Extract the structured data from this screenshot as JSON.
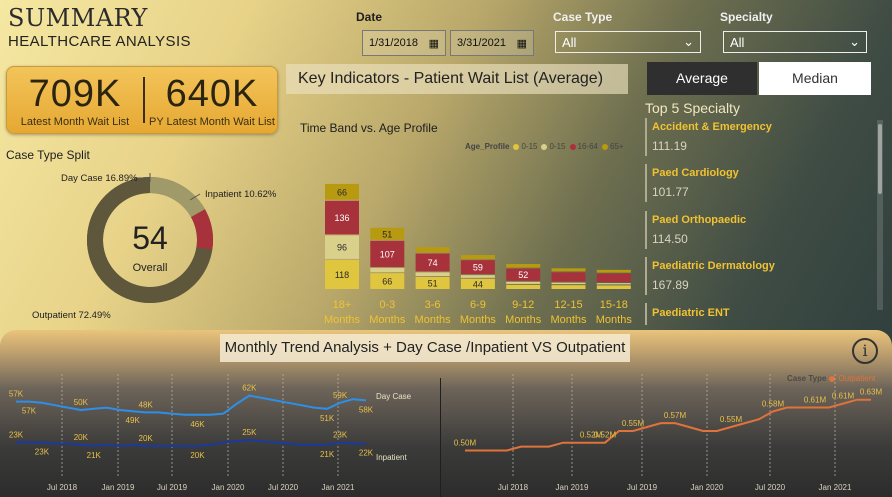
{
  "header": {
    "title": "SUMMARY",
    "subtitle": "HEALTHCARE ANALYSIS"
  },
  "filters": {
    "date_label": "Date",
    "date_start": "1/31/2018",
    "date_end": "3/31/2021",
    "case_type_label": "Case Type",
    "case_type_value": "All",
    "specialty_label": "Specialty",
    "specialty_value": "All"
  },
  "kpi": {
    "latest_value": "709K",
    "latest_label": "Latest Month Wait List",
    "py_value": "640K",
    "py_label": "PY Latest Month Wait List"
  },
  "key_indicators": {
    "title": "Key Indicators - Patient Wait List (Average)",
    "btn_average": "Average",
    "btn_median": "Median"
  },
  "case_type_split": {
    "title": "Case Type Split",
    "center_value": "54",
    "center_label": "Overall",
    "slices": [
      {
        "name": "Day Case",
        "percent": 16.89,
        "label": "Day Case 16.89%",
        "color": "#a09a6a"
      },
      {
        "name": "Inpatient",
        "percent": 10.62,
        "label": "Inpatient 10.62%",
        "color": "#a8323c"
      },
      {
        "name": "Outpatient",
        "percent": 72.49,
        "label": "Outpatient 72.49%",
        "color": "#5e573c"
      }
    ]
  },
  "time_band": {
    "title": "Time Band vs. Age Profile",
    "legend_title": "Age_Profile",
    "legend": [
      {
        "name": "0-15",
        "color": "#e0c53e"
      },
      {
        "name": "0-15",
        "color": "#d9d08c"
      },
      {
        "name": "16-64",
        "color": "#a8323c"
      },
      {
        "name": "65+",
        "color": "#b89a10"
      }
    ],
    "categories": [
      [
        "18+",
        "Months"
      ],
      [
        "0-3",
        "Months"
      ],
      [
        "3-6",
        "Months"
      ],
      [
        "6-9",
        "Months"
      ],
      [
        "9-12",
        "Months"
      ],
      [
        "12-15",
        "Months"
      ],
      [
        "15-18",
        "Months"
      ]
    ]
  },
  "top_specialty": {
    "title": "Top 5 Specialty",
    "items": [
      {
        "name": "Accident & Emergency",
        "value": "111.19"
      },
      {
        "name": "Paed Cardiology",
        "value": "101.77"
      },
      {
        "name": "Paed Orthopaedic",
        "value": "114.50"
      },
      {
        "name": "Paediatric Dermatology",
        "value": "167.89"
      },
      {
        "name": "Paediatric ENT",
        "value": ""
      }
    ]
  },
  "trend": {
    "title": "Monthly Trend Analysis + Day Case /Inpatient VS Outpatient",
    "left_axis": [
      "Jul 2018",
      "Jan 2019",
      "Jul 2019",
      "Jan 2020",
      "Jul 2020",
      "Jan 2021"
    ],
    "right_axis": [
      "Jul 2018",
      "Jan 2019",
      "Jul 2019",
      "Jan 2020",
      "Jul 2020",
      "Jan 2021"
    ],
    "right_legend_title": "Case Type",
    "right_legend_item": "Outpatient"
  },
  "chart_data": [
    {
      "type": "pie",
      "title": "Case Type Split",
      "categories": [
        "Day Case",
        "Inpatient",
        "Outpatient"
      ],
      "values": [
        16.89,
        10.62,
        72.49
      ]
    },
    {
      "type": "bar",
      "stacked": true,
      "title": "Time Band vs. Age Profile",
      "categories": [
        "18+ Months",
        "0-3 Months",
        "3-6 Months",
        "6-9 Months",
        "9-12 Months",
        "12-15 Months",
        "15-18 Months"
      ],
      "series": [
        {
          "name": "0-15",
          "color": "#e0c53e",
          "values": [
            118,
            66,
            51,
            44,
            20,
            19,
            18
          ]
        },
        {
          "name": "0-15",
          "color": "#d9d08c",
          "values": [
            96,
            20,
            18,
            14,
            12,
            10,
            9
          ]
        },
        {
          "name": "16-64",
          "color": "#a8323c",
          "values": [
            136,
            107,
            74,
            59,
            52,
            40,
            37
          ]
        },
        {
          "name": "65+",
          "color": "#b89a10",
          "values": [
            66,
            51,
            25,
            20,
            18,
            16,
            15
          ]
        }
      ],
      "data_labels": [
        [
          "118",
          "96",
          "136",
          "66"
        ],
        [
          "66",
          "",
          "107",
          "51"
        ],
        [
          "51",
          "",
          "74",
          ""
        ],
        [
          "44",
          "",
          "59",
          ""
        ],
        [
          "",
          "",
          "52",
          ""
        ],
        [
          "",
          "",
          "",
          ""
        ],
        [
          "",
          "",
          "",
          ""
        ]
      ],
      "ylim": [
        0,
        450
      ]
    },
    {
      "type": "line",
      "title": "Day Case / Inpatient",
      "ylim": [
        0,
        75
      ],
      "series": [
        {
          "name": "Day Case",
          "color": "#2e8fe8",
          "points": [
            [
              0,
              57
            ],
            [
              1,
              57
            ],
            [
              2,
              56
            ],
            [
              3,
              54
            ],
            [
              4,
              52
            ],
            [
              5,
              50
            ],
            [
              6,
              51
            ],
            [
              7,
              52
            ],
            [
              8,
              50
            ],
            [
              9,
              49
            ],
            [
              10,
              48
            ],
            [
              11,
              48
            ],
            [
              12,
              47
            ],
            [
              13,
              46
            ],
            [
              14,
              46
            ],
            [
              15,
              46
            ],
            [
              16,
              47
            ],
            [
              17,
              55
            ],
            [
              18,
              62
            ],
            [
              19,
              60
            ],
            [
              20,
              58
            ],
            [
              21,
              56
            ],
            [
              22,
              54
            ],
            [
              23,
              52
            ],
            [
              24,
              51
            ],
            [
              25,
              56
            ],
            [
              26,
              59
            ],
            [
              27,
              58
            ]
          ],
          "labels": [
            [
              0,
              "57K"
            ],
            [
              1,
              "57K"
            ],
            [
              5,
              "50K"
            ],
            [
              9,
              "49K"
            ],
            [
              10,
              "48K"
            ],
            [
              14,
              "46K"
            ],
            [
              18,
              "62K"
            ],
            [
              24,
              "51K"
            ],
            [
              25,
              "59K"
            ],
            [
              27,
              "58K"
            ]
          ]
        },
        {
          "name": "Inpatient",
          "color": "#1a3aa0",
          "points": [
            [
              0,
              23
            ],
            [
              1,
              23
            ],
            [
              2,
              23
            ],
            [
              3,
              22
            ],
            [
              4,
              22
            ],
            [
              5,
              21
            ],
            [
              6,
              20
            ],
            [
              7,
              21
            ],
            [
              8,
              20
            ],
            [
              9,
              21
            ],
            [
              10,
              20
            ],
            [
              11,
              20
            ],
            [
              12,
              20
            ],
            [
              13,
              20
            ],
            [
              14,
              20
            ],
            [
              15,
              21
            ],
            [
              16,
              23
            ],
            [
              17,
              24
            ],
            [
              18,
              25
            ],
            [
              19,
              24
            ],
            [
              20,
              23
            ],
            [
              21,
              22
            ],
            [
              22,
              21
            ],
            [
              23,
              21
            ],
            [
              24,
              21
            ],
            [
              25,
              23
            ],
            [
              26,
              22
            ],
            [
              27,
              22
            ]
          ],
          "labels": [
            [
              0,
              "23K"
            ],
            [
              2,
              "23K"
            ],
            [
              5,
              "20K"
            ],
            [
              6,
              "21K"
            ],
            [
              10,
              "20K"
            ],
            [
              14,
              "20K"
            ],
            [
              18,
              "25K"
            ],
            [
              24,
              "21K"
            ],
            [
              25,
              "23K"
            ],
            [
              27,
              "22K"
            ]
          ]
        }
      ]
    },
    {
      "type": "line",
      "title": "Outpatient",
      "ylim": [
        0.45,
        0.66
      ],
      "series": [
        {
          "name": "Outpatient",
          "color": "#e0733a",
          "points": [
            [
              0,
              0.5
            ],
            [
              1,
              0.5
            ],
            [
              2,
              0.5
            ],
            [
              3,
              0.5
            ],
            [
              4,
              0.51
            ],
            [
              5,
              0.51
            ],
            [
              6,
              0.51
            ],
            [
              7,
              0.52
            ],
            [
              8,
              0.52
            ],
            [
              9,
              0.52
            ],
            [
              10,
              0.52
            ],
            [
              11,
              0.55
            ],
            [
              12,
              0.55
            ],
            [
              13,
              0.56
            ],
            [
              14,
              0.57
            ],
            [
              15,
              0.57
            ],
            [
              16,
              0.56
            ],
            [
              17,
              0.55
            ],
            [
              18,
              0.55
            ],
            [
              19,
              0.56
            ],
            [
              20,
              0.57
            ],
            [
              21,
              0.58
            ],
            [
              22,
              0.6
            ],
            [
              23,
              0.61
            ],
            [
              24,
              0.61
            ],
            [
              25,
              0.61
            ],
            [
              26,
              0.61
            ],
            [
              27,
              0.62
            ],
            [
              28,
              0.63
            ],
            [
              29,
              0.63
            ]
          ],
          "labels": [
            [
              0,
              "0.50M"
            ],
            [
              9,
              "0.52M"
            ],
            [
              10,
              "0.52M"
            ],
            [
              12,
              "0.55M"
            ],
            [
              15,
              "0.57M"
            ],
            [
              19,
              "0.55M"
            ],
            [
              22,
              "0.58M"
            ],
            [
              25,
              "0.61M"
            ],
            [
              27,
              "0.61M"
            ],
            [
              29,
              "0.63M"
            ]
          ]
        }
      ]
    }
  ]
}
